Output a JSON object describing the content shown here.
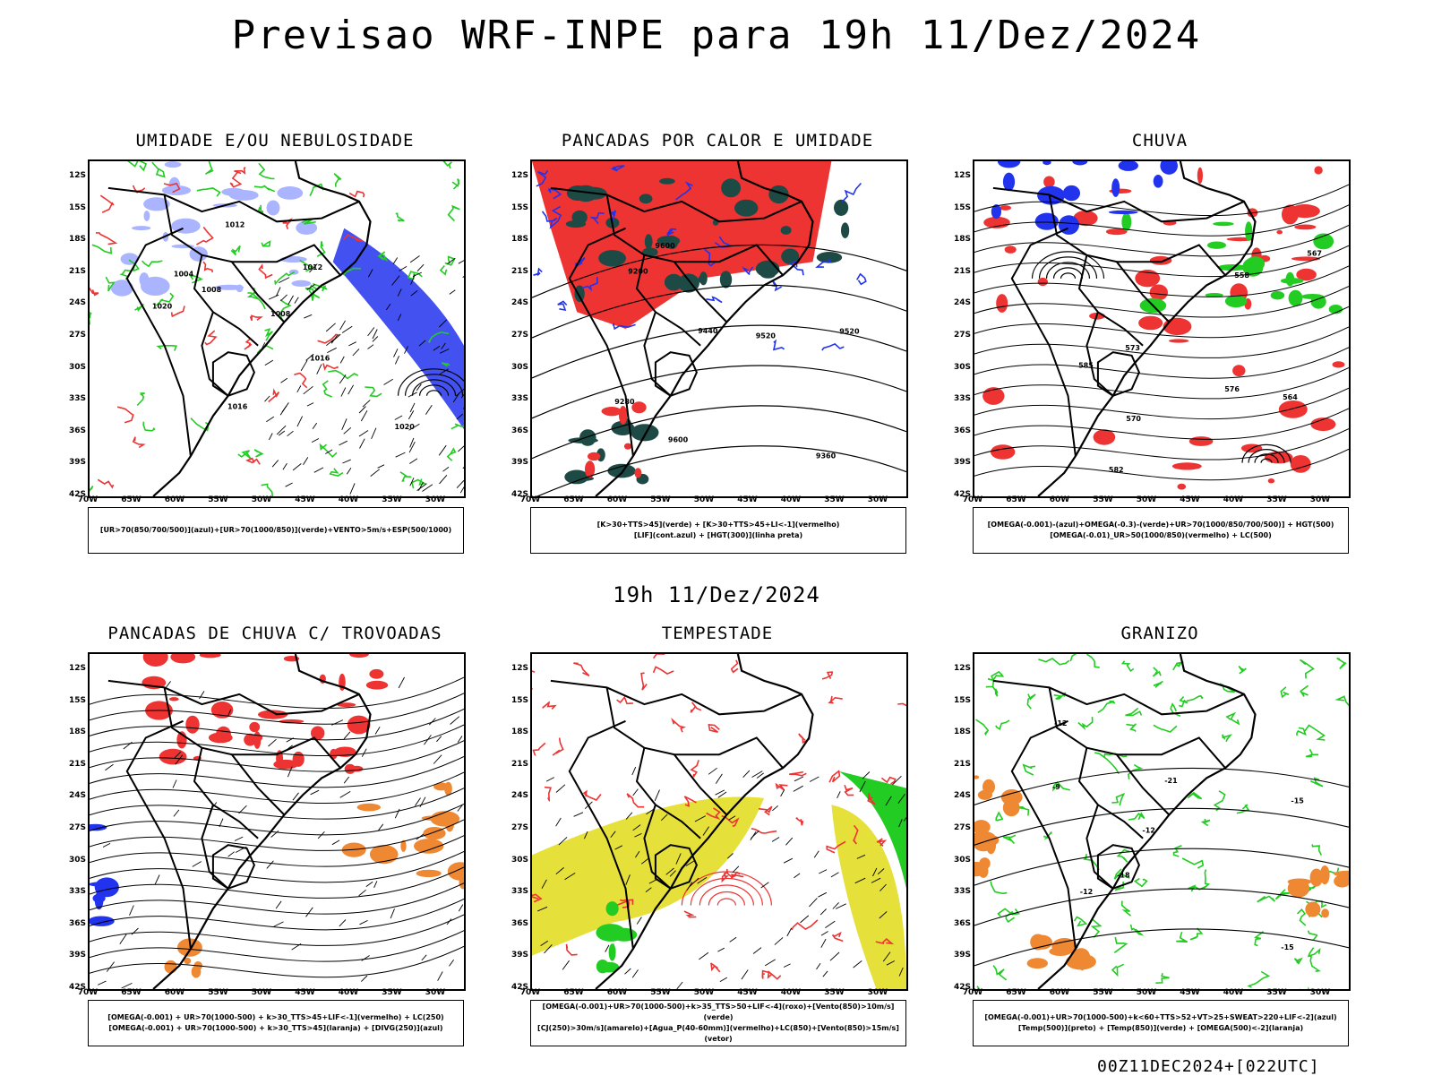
{
  "title": "Previsao WRF-INPE  para 19h 11/Dez/2024",
  "mid_time": "19h 11/Dez/2024",
  "footer_stamp": "00Z11DEC2024+[022UTC]",
  "axes": {
    "y_labels": [
      "12S",
      "15S",
      "18S",
      "21S",
      "24S",
      "27S",
      "30S",
      "33S",
      "36S",
      "39S",
      "42S"
    ],
    "x_labels": [
      "70W",
      "65W",
      "60W",
      "55W",
      "50W",
      "45W",
      "40W",
      "35W",
      "30W"
    ]
  },
  "colors": {
    "blue": "#2233ee",
    "light_blue": "#aab4ff",
    "green": "#22cc22",
    "red": "#ee3333",
    "yellow": "#e6e03a",
    "orange": "#ee8833",
    "dark_teal": "#1e4a46"
  },
  "panels": [
    {
      "id": "umidade",
      "title": "UMIDADE E/OU NEBULOSIDADE",
      "legend": [
        "[UR>70(850/700/500)](azul)+[UR>70(1000/850)](verde)+VENTO>5m/s+ESP(500/1000)"
      ],
      "contour_labels": [
        "1008",
        "1004",
        "1008",
        "1012",
        "1016",
        "1012",
        "1020",
        "1016",
        "1020"
      ]
    },
    {
      "id": "pancadas-calor",
      "title": "PANCADAS POR CALOR E UMIDADE",
      "legend": [
        "[K>30+TTS>45](verde) + [K>30+TTS>45+LI<-1](vermelho)",
        "[LIF](cont.azul) + [HGT(300)](linha preta)"
      ],
      "contour_labels": [
        "9600",
        "9520",
        "9440",
        "9360",
        "9280",
        "9200",
        "9520",
        "9600"
      ]
    },
    {
      "id": "chuva",
      "title": "CHUVA",
      "legend": [
        "[OMEGA(-0.001)-(azul)+OMEGA(-0.3)-(verde)+UR>70(1000/850/700/500)] + HGT(500)",
        "[OMEGA(-0.01)_UR>50(1000/850)(vermelho) + LC(500)"
      ],
      "contour_labels": [
        "582",
        "576",
        "573",
        "570",
        "564",
        "558",
        "585",
        "567"
      ]
    },
    {
      "id": "pancadas-trovoadas",
      "title": "PANCADAS DE CHUVA C/ TROVOADAS",
      "legend": [
        "[OMEGA(-0.001) + UR>70(1000-500) + k>30_TTS>45+LIF<-1](vermelho) + LC(250)",
        "[OMEGA(-0.001) + UR>70(1000-500) + k>30_TTS>45](laranja) + [DIVG(250)](azul)"
      ],
      "contour_labels": []
    },
    {
      "id": "tempestade",
      "title": "TEMPESTADE",
      "legend": [
        "[OMEGA(-0.001)+UR>70(1000-500)+k>35_TTS>50+LIF<-4](roxo)+[Vento(850)>10m/s](verde)",
        "[CJ(250)>30m/s](amarelo)+[Agua_P(40-60mm)](vermelho)+LC(850)+[Vento(850)>15m/s](vetor)"
      ],
      "contour_labels": []
    },
    {
      "id": "granizo",
      "title": "GRANIZO",
      "legend": [
        "[OMEGA(-0.001)+UR>70(1000-500)+k<60+TTS>52+VT>25+SWEAT>220+LIF<-2](azul)",
        "[Temp(500)](preto) + [Temp(850)](verde) + [OMEGA(500)<-2](laranja)"
      ],
      "contour_labels": [
        "-12",
        "-9",
        "-12",
        "-15",
        "-18",
        "-21",
        "-15",
        "-12"
      ]
    }
  ]
}
